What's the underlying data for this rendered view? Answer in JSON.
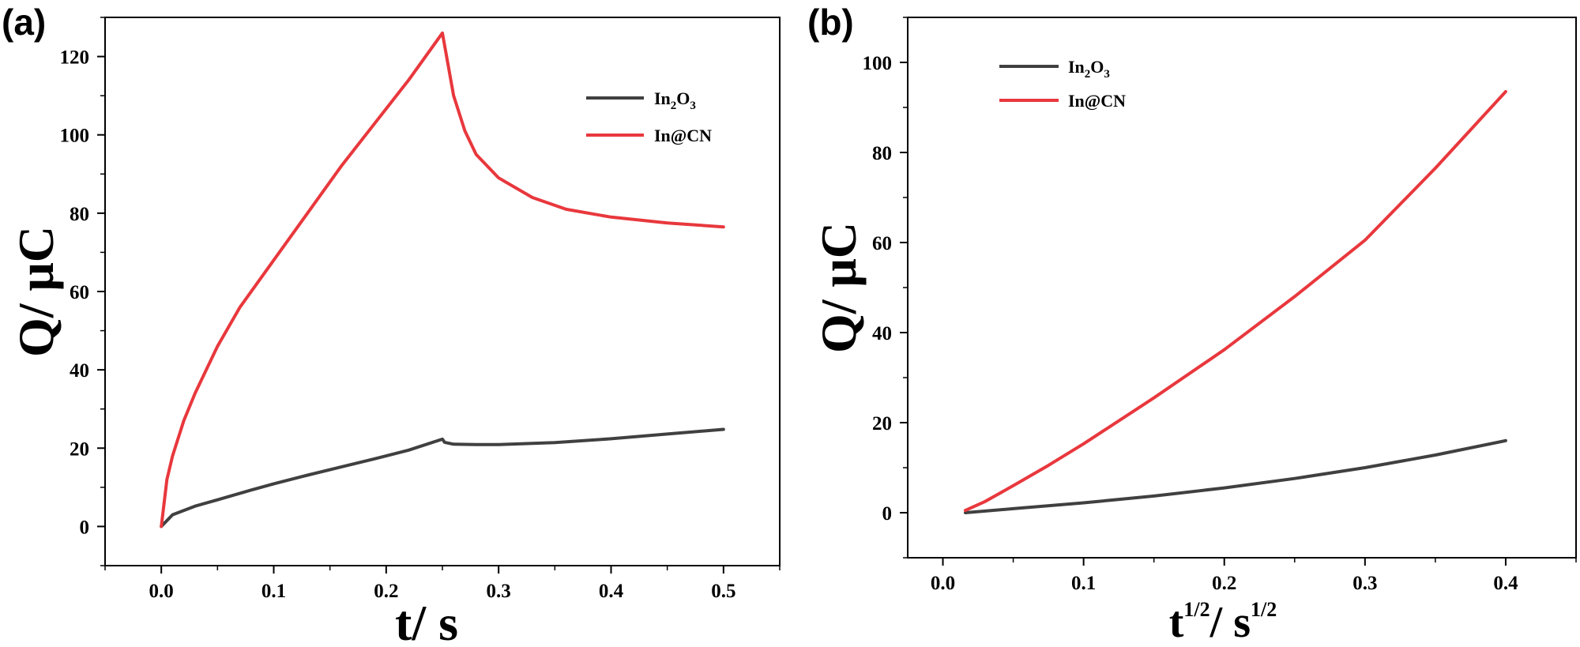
{
  "colors": {
    "in2o3": "#404040",
    "incn": "#e8383d",
    "axis": "#000000"
  },
  "chart_data": [
    {
      "panel": "(a)",
      "type": "line",
      "xlabel": "t/ s",
      "ylabel": "Q/ μC",
      "xlim": [
        -0.05,
        0.55
      ],
      "ylim": [
        -10,
        130
      ],
      "xticks": [
        0.0,
        0.1,
        0.2,
        0.3,
        0.4,
        0.5
      ],
      "xtick_labels": [
        "0.0",
        "0.1",
        "0.2",
        "0.3",
        "0.4",
        "0.5"
      ],
      "yticks": [
        0,
        20,
        40,
        60,
        80,
        100,
        120
      ],
      "ytick_labels": [
        "0",
        "20",
        "40",
        "60",
        "80",
        "100",
        "120"
      ],
      "legend_position": "top-right",
      "series": [
        {
          "name": "In2O3",
          "label_main": "In",
          "label_sub1": "2",
          "label_mid": "O",
          "label_sub2": "3",
          "color": "#404040",
          "x": [
            0,
            0.01,
            0.03,
            0.05,
            0.08,
            0.1,
            0.13,
            0.16,
            0.19,
            0.22,
            0.25,
            0.252,
            0.26,
            0.28,
            0.3,
            0.35,
            0.4,
            0.45,
            0.5
          ],
          "y": [
            0,
            3.0,
            5.2,
            6.8,
            9.3,
            10.9,
            13.1,
            15.2,
            17.3,
            19.5,
            22.3,
            21.5,
            21.0,
            20.9,
            20.9,
            21.4,
            22.4,
            23.6,
            24.8
          ]
        },
        {
          "name": "In@CN",
          "label_main": "In@CN",
          "color": "#e8383d",
          "x": [
            0,
            0.005,
            0.01,
            0.02,
            0.03,
            0.05,
            0.07,
            0.1,
            0.13,
            0.16,
            0.19,
            0.22,
            0.25,
            0.255,
            0.26,
            0.27,
            0.28,
            0.3,
            0.33,
            0.36,
            0.4,
            0.45,
            0.5
          ],
          "y": [
            0,
            12,
            18,
            27,
            34,
            46,
            56,
            68,
            80,
            92,
            103,
            114,
            126,
            118,
            110,
            101,
            95,
            89,
            84,
            81,
            79,
            77.5,
            76.5
          ]
        }
      ]
    },
    {
      "panel": "(b)",
      "type": "line",
      "xlabel_main": "t",
      "xlabel_sup1": "1/2",
      "xlabel_mid": "/ s",
      "xlabel_sup2": "1/2",
      "ylabel": "Q/ μC",
      "xlim": [
        -0.025,
        0.45
      ],
      "ylim": [
        -10,
        110
      ],
      "xticks": [
        0.0,
        0.1,
        0.2,
        0.3,
        0.4
      ],
      "xtick_labels": [
        "0.0",
        "0.1",
        "0.2",
        "0.3",
        "0.4"
      ],
      "yticks": [
        0,
        20,
        40,
        60,
        80,
        100
      ],
      "ytick_labels": [
        "0",
        "20",
        "40",
        "60",
        "80",
        "100"
      ],
      "legend_position": "top-left",
      "series": [
        {
          "name": "In2O3",
          "label_main": "In",
          "label_sub1": "2",
          "label_mid": "O",
          "label_sub2": "3",
          "color": "#404040",
          "x": [
            0.016,
            0.05,
            0.1,
            0.15,
            0.2,
            0.25,
            0.3,
            0.35,
            0.4
          ],
          "y": [
            0,
            0.9,
            2.2,
            3.7,
            5.5,
            7.6,
            10.0,
            12.8,
            16.0
          ]
        },
        {
          "name": "In@CN",
          "label_main": "In@CN",
          "color": "#e8383d",
          "x": [
            0.016,
            0.03,
            0.05,
            0.075,
            0.1,
            0.15,
            0.2,
            0.25,
            0.3,
            0.35,
            0.4
          ],
          "y": [
            0.5,
            2.5,
            6.0,
            10.5,
            15.3,
            25.5,
            36.2,
            48.0,
            60.5,
            76.5,
            93.5
          ]
        }
      ]
    }
  ]
}
